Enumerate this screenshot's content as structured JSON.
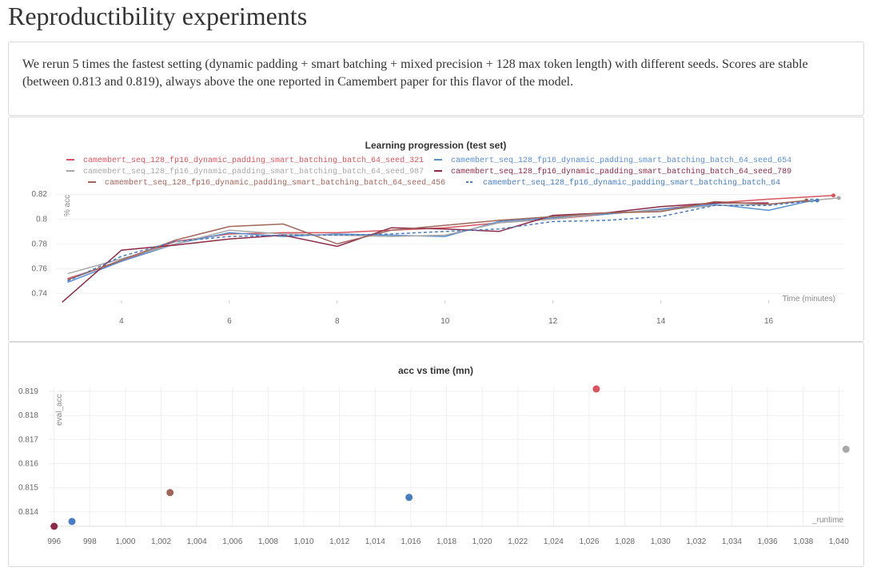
{
  "page": {
    "title": "Reproductibility experiments",
    "description": "We rerun 5 times the fastest setting (dynamic padding + smart batching + mixed precision + 128 max token length) with different seeds. Scores are stable (between 0.813 and 0.819), always above the one reported in Camembert paper for this flavor of the model."
  },
  "chart_data": [
    {
      "type": "line",
      "title": "Learning progression (test set)",
      "xlabel": "Time (minutes)",
      "ylabel": "% acc",
      "xlim": [
        2.8,
        17.4
      ],
      "ylim": [
        0.732,
        0.824
      ],
      "x_ticks": [
        4,
        6,
        8,
        10,
        12,
        14,
        16
      ],
      "y_ticks": [
        0.74,
        0.76,
        0.78,
        0.8,
        0.82
      ],
      "x_tick_labels": [
        "4",
        "6",
        "8",
        "10",
        "12",
        "14",
        "16"
      ],
      "y_tick_labels": [
        "0.74",
        "0.76",
        "0.78",
        "0.8",
        "0.82"
      ],
      "grid": true,
      "legend_position": "top",
      "series": [
        {
          "name": "camembert_seq_128_fp16_dynamic_padding_smart_batching_batch_64_seed_321",
          "color": "#d6555f",
          "dash": "solid",
          "marker": "end",
          "x": [
            3.0,
            4.0,
            5.0,
            6.0,
            7.0,
            8.0,
            9.0,
            10.0,
            11.0,
            12.0,
            13.0,
            14.0,
            15.0,
            16.0,
            17.2
          ],
          "y": [
            0.752,
            0.766,
            0.782,
            0.788,
            0.789,
            0.789,
            0.791,
            0.793,
            0.797,
            0.8,
            0.804,
            0.808,
            0.813,
            0.816,
            0.819
          ]
        },
        {
          "name": "camembert_seq_128_fp16_dynamic_padding_smart_batching_batch_64_seed_654",
          "color": "#5a8fcf",
          "dash": "solid",
          "marker": "end",
          "x": [
            3.0,
            4.0,
            5.0,
            6.0,
            7.0,
            8.0,
            9.0,
            10.0,
            11.0,
            12.0,
            13.0,
            14.0,
            15.0,
            16.0,
            16.8
          ],
          "y": [
            0.749,
            0.766,
            0.78,
            0.789,
            0.786,
            0.788,
            0.787,
            0.786,
            0.798,
            0.801,
            0.804,
            0.808,
            0.812,
            0.807,
            0.815
          ]
        },
        {
          "name": "camembert_seq_128_fp16_dynamic_padding_smart_batching_batch_64_seed_987",
          "color": "#a8a8a8",
          "dash": "solid",
          "marker": "end",
          "x": [
            3.0,
            4.0,
            5.0,
            6.0,
            7.0,
            8.0,
            9.0,
            10.0,
            11.0,
            12.0,
            13.0,
            14.0,
            15.0,
            16.0,
            17.3
          ],
          "y": [
            0.756,
            0.768,
            0.78,
            0.791,
            0.788,
            0.787,
            0.786,
            0.787,
            0.797,
            0.8,
            0.805,
            0.807,
            0.811,
            0.812,
            0.817
          ]
        },
        {
          "name": "camembert_seq_128_fp16_dynamic_padding_smart_batching_batch_64_seed_789",
          "color": "#8c2a48",
          "dash": "solid",
          "marker": "none",
          "x": [
            2.9,
            4.0,
            5.0,
            6.0,
            7.0,
            8.0,
            9.0,
            10.0,
            11.0,
            12.0,
            13.0,
            14.0,
            15.0,
            16.0
          ],
          "y": [
            0.733,
            0.775,
            0.779,
            0.784,
            0.787,
            0.778,
            0.793,
            0.792,
            0.79,
            0.803,
            0.805,
            0.81,
            0.813,
            0.813
          ]
        },
        {
          "name": "camembert_seq_128_fp16_dynamic_padding_smart_batching_batch_64_seed_456",
          "color": "#a0665a",
          "dash": "solid",
          "marker": "end",
          "x": [
            3.0,
            4.0,
            5.0,
            6.0,
            7.0,
            8.0,
            9.0,
            10.0,
            11.0,
            12.0,
            13.0,
            14.0,
            15.0,
            16.0,
            16.7
          ],
          "y": [
            0.751,
            0.767,
            0.783,
            0.794,
            0.796,
            0.78,
            0.791,
            0.795,
            0.799,
            0.802,
            0.805,
            0.806,
            0.814,
            0.812,
            0.815
          ]
        },
        {
          "name": "camembert_seq_128_fp16_dynamic_padding_smart_batching_batch_64",
          "color": "#4a7cc0",
          "dash": "dashed",
          "marker": "end",
          "x": [
            3.0,
            4.0,
            5.0,
            6.0,
            7.0,
            8.0,
            9.0,
            10.0,
            11.0,
            12.0,
            13.0,
            14.0,
            15.0,
            16.0,
            16.9
          ],
          "y": [
            0.75,
            0.77,
            0.782,
            0.786,
            0.787,
            0.787,
            0.788,
            0.79,
            0.792,
            0.798,
            0.799,
            0.802,
            0.811,
            0.811,
            0.815
          ]
        }
      ]
    },
    {
      "type": "scatter",
      "title": "acc vs time (mn)",
      "xlabel": "_runtime",
      "ylabel": "eval_acc",
      "xlim": [
        995.7,
        1040.3
      ],
      "ylim": [
        0.8134,
        0.8192
      ],
      "x_ticks": [
        996,
        998,
        1000,
        1002,
        1004,
        1006,
        1008,
        1010,
        1012,
        1014,
        1016,
        1018,
        1020,
        1022,
        1024,
        1026,
        1028,
        1030,
        1032,
        1034,
        1036,
        1038,
        1040
      ],
      "y_ticks": [
        0.814,
        0.815,
        0.816,
        0.817,
        0.818,
        0.819
      ],
      "x_tick_labels": [
        "996",
        "998",
        "1,000",
        "1,002",
        "1,004",
        "1,006",
        "1,008",
        "1,010",
        "1,012",
        "1,014",
        "1,016",
        "1,018",
        "1,020",
        "1,022",
        "1,024",
        "1,026",
        "1,028",
        "1,030",
        "1,032",
        "1,034",
        "1,036",
        "1,038",
        "1,040"
      ],
      "y_tick_labels": [
        "0.814",
        "0.815",
        "0.816",
        "0.817",
        "0.818",
        "0.819"
      ],
      "grid": true,
      "points": [
        {
          "x": 996.0,
          "y": 0.8134,
          "color": "#8c2a48"
        },
        {
          "x": 997.0,
          "y": 0.8136,
          "color": "#4a7cc0"
        },
        {
          "x": 1002.5,
          "y": 0.8148,
          "color": "#a0665a"
        },
        {
          "x": 1015.9,
          "y": 0.8146,
          "color": "#4a7cc0"
        },
        {
          "x": 1026.4,
          "y": 0.8191,
          "color": "#d6555f"
        },
        {
          "x": 1040.4,
          "y": 0.8166,
          "color": "#a8a8a8"
        }
      ]
    }
  ]
}
